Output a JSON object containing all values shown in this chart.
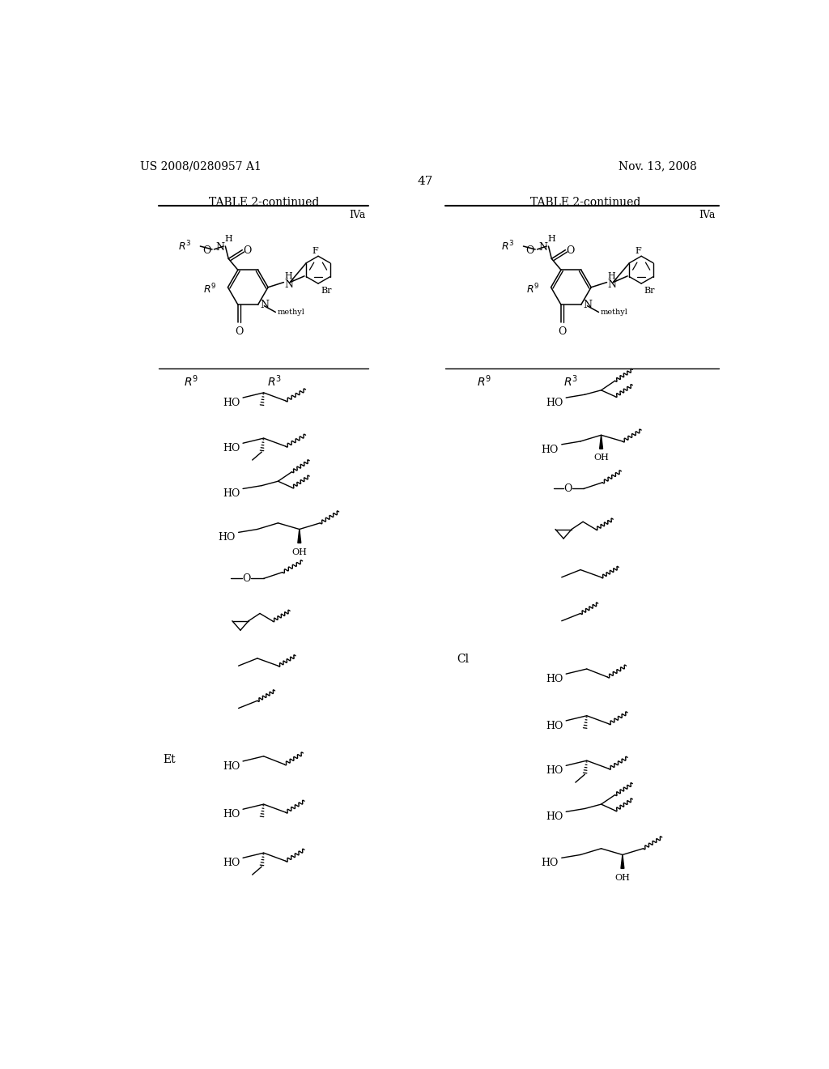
{
  "bg": "#ffffff",
  "page_num": "47",
  "left_hdr": "US 2008/0280957 A1",
  "right_hdr": "Nov. 13, 2008",
  "tbl_title": "TABLE 2-continued",
  "iva": "IVa",
  "et_label": "Et",
  "cl_label": "Cl"
}
